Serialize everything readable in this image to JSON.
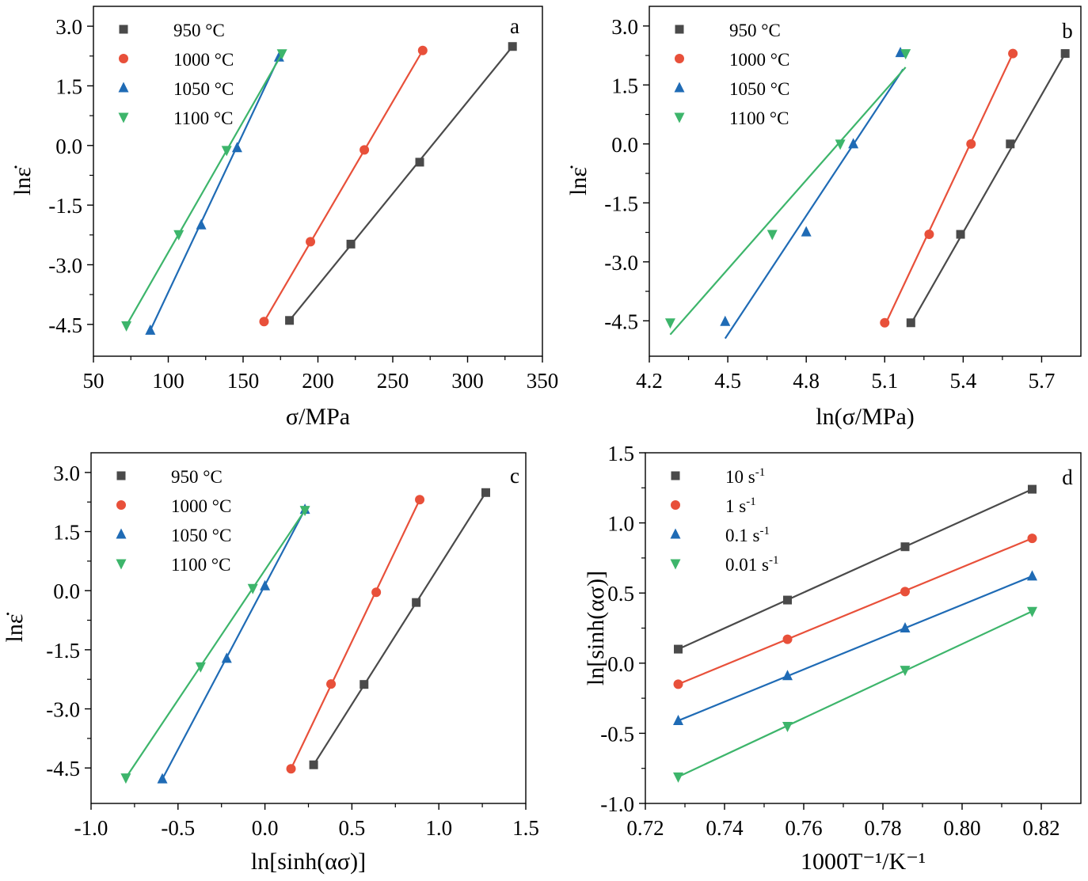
{
  "colors": {
    "s950": "#4a4a4a",
    "s1000": "#e8503a",
    "s1050": "#1f6bb5",
    "s1100": "#3db56b"
  },
  "chart_data": [
    {
      "panel": "a",
      "type": "scatter",
      "xlabel": "σ/MPa",
      "ylabel": "lnε̇",
      "xlim": [
        50,
        350
      ],
      "ylim": [
        -5.3,
        3.5
      ],
      "xticks": [
        "50",
        "100",
        "150",
        "200",
        "250",
        "300",
        "350"
      ],
      "yticks": [
        "3.0",
        "1.5",
        "0.0",
        "-1.5",
        "-3.0",
        "-4.5"
      ],
      "legend_position": "top-left",
      "series": [
        {
          "name": "950 °C",
          "marker": "square",
          "color": "#4a4a4a",
          "points": [
            [
              181,
              -4.4
            ],
            [
              222,
              -2.48
            ],
            [
              268,
              -0.42
            ],
            [
              330,
              2.49
            ]
          ],
          "fit": [
            [
              181,
              -4.4
            ],
            [
              330,
              2.49
            ]
          ]
        },
        {
          "name": "1000 °C",
          "marker": "circle",
          "color": "#e8503a",
          "points": [
            [
              164,
              -4.43
            ],
            [
              195,
              -2.42
            ],
            [
              231,
              -0.11
            ],
            [
              270,
              2.39
            ]
          ],
          "fit": [
            [
              164,
              -4.43
            ],
            [
              270,
              2.39
            ]
          ]
        },
        {
          "name": "1050 °C",
          "marker": "triangle-up",
          "color": "#1f6bb5",
          "points": [
            [
              88,
              -4.65
            ],
            [
              122,
              -2.0
            ],
            [
              146,
              -0.06
            ],
            [
              174,
              2.22
            ]
          ],
          "fit": [
            [
              88,
              -4.65
            ],
            [
              174,
              2.22
            ]
          ]
        },
        {
          "name": "1100 °C",
          "marker": "triangle-down",
          "color": "#3db56b",
          "points": [
            [
              72,
              -4.53
            ],
            [
              107,
              -2.24
            ],
            [
              139,
              -0.12
            ],
            [
              176,
              2.31
            ]
          ],
          "fit": [
            [
              72,
              -4.53
            ],
            [
              176,
              2.31
            ]
          ]
        }
      ]
    },
    {
      "panel": "b",
      "type": "scatter",
      "xlabel": "ln(σ/MPa)",
      "ylabel": "lnε̇",
      "xlim": [
        4.2,
        5.85
      ],
      "ylim": [
        -5.4,
        3.5
      ],
      "xticks": [
        "4.2",
        "4.5",
        "4.8",
        "5.1",
        "5.4",
        "5.7"
      ],
      "yticks": [
        "3.0",
        "1.5",
        "0.0",
        "-1.5",
        "-3.0",
        "-4.5"
      ],
      "legend_position": "top-left",
      "series": [
        {
          "name": "950 °C",
          "marker": "square",
          "color": "#4a4a4a",
          "points": [
            [
              5.2,
              -4.55
            ],
            [
              5.39,
              -2.3
            ],
            [
              5.58,
              0.0
            ],
            [
              5.79,
              2.3
            ]
          ],
          "fit": [
            [
              5.2,
              -4.58
            ],
            [
              5.79,
              2.3
            ]
          ]
        },
        {
          "name": "1000 °C",
          "marker": "circle",
          "color": "#e8503a",
          "points": [
            [
              5.1,
              -4.55
            ],
            [
              5.27,
              -2.3
            ],
            [
              5.43,
              0.0
            ],
            [
              5.59,
              2.3
            ]
          ],
          "fit": [
            [
              5.1,
              -4.62
            ],
            [
              5.59,
              2.3
            ]
          ]
        },
        {
          "name": "1050 °C",
          "marker": "triangle-up",
          "color": "#1f6bb5",
          "points": [
            [
              4.49,
              -4.52
            ],
            [
              4.8,
              -2.24
            ],
            [
              4.98,
              0.0
            ],
            [
              5.16,
              2.32
            ]
          ],
          "fit": [
            [
              4.49,
              -4.95
            ],
            [
              5.17,
              1.9
            ]
          ]
        },
        {
          "name": "1100 °C",
          "marker": "triangle-down",
          "color": "#3db56b",
          "points": [
            [
              4.28,
              -4.55
            ],
            [
              4.67,
              -2.3
            ],
            [
              4.93,
              0.0
            ],
            [
              5.18,
              2.3
            ]
          ],
          "fit": [
            [
              4.28,
              -4.85
            ],
            [
              5.18,
              1.95
            ]
          ]
        }
      ]
    },
    {
      "panel": "c",
      "type": "scatter",
      "xlabel": "ln[sinh(ασ)]",
      "ylabel": "lnε̇",
      "xlim": [
        -1.0,
        1.5
      ],
      "ylim": [
        -5.4,
        3.5
      ],
      "xticks": [
        "-1.0",
        "-0.5",
        "0.0",
        "0.5",
        "1.0",
        "1.5"
      ],
      "yticks": [
        "3.0",
        "1.5",
        "0.0",
        "-1.5",
        "-3.0",
        "-4.5"
      ],
      "legend_position": "top-left",
      "series": [
        {
          "name": "950 °C",
          "marker": "square",
          "color": "#4a4a4a",
          "points": [
            [
              0.28,
              -4.42
            ],
            [
              0.57,
              -2.38
            ],
            [
              0.87,
              -0.3
            ],
            [
              1.27,
              2.49
            ]
          ],
          "fit": [
            [
              0.28,
              -4.42
            ],
            [
              1.27,
              2.49
            ]
          ]
        },
        {
          "name": "1000 °C",
          "marker": "circle",
          "color": "#e8503a",
          "points": [
            [
              0.15,
              -4.52
            ],
            [
              0.38,
              -2.37
            ],
            [
              0.64,
              -0.04
            ],
            [
              0.89,
              2.31
            ]
          ],
          "fit": [
            [
              0.15,
              -4.52
            ],
            [
              0.89,
              2.31
            ]
          ]
        },
        {
          "name": "1050 °C",
          "marker": "triangle-up",
          "color": "#1f6bb5",
          "points": [
            [
              -0.59,
              -4.78
            ],
            [
              -0.22,
              -1.72
            ],
            [
              0.0,
              0.12
            ],
            [
              0.23,
              2.06
            ]
          ],
          "fit": [
            [
              -0.59,
              -4.78
            ],
            [
              0.23,
              2.06
            ]
          ]
        },
        {
          "name": "1100 °C",
          "marker": "triangle-down",
          "color": "#3db56b",
          "points": [
            [
              -0.8,
              -4.75
            ],
            [
              -0.37,
              -1.93
            ],
            [
              -0.07,
              0.06
            ],
            [
              0.23,
              2.04
            ]
          ],
          "fit": [
            [
              -0.8,
              -4.75
            ],
            [
              0.23,
              2.04
            ]
          ]
        }
      ]
    },
    {
      "panel": "d",
      "type": "scatter",
      "xlabel": "1000T⁻¹/K⁻¹",
      "ylabel": "ln[sinh(ασ)]",
      "xlim": [
        0.72,
        0.83
      ],
      "ylim": [
        -1.0,
        1.5
      ],
      "xticks": [
        "0.72",
        "0.74",
        "0.76",
        "0.78",
        "0.80",
        "0.82"
      ],
      "yticks": [
        "1.5",
        "1.0",
        "0.5",
        "0.0",
        "-0.5",
        "-1.0"
      ],
      "legend_position": "top-left",
      "series": [
        {
          "name": "10 s-1",
          "marker": "square",
          "color": "#4a4a4a",
          "points": [
            [
              0.7283,
              0.1
            ],
            [
              0.7559,
              0.45
            ],
            [
              0.7856,
              0.83
            ],
            [
              0.8177,
              1.24
            ]
          ],
          "fit": [
            [
              0.7283,
              0.1
            ],
            [
              0.8177,
              1.24
            ]
          ]
        },
        {
          "name": "1 s-1",
          "marker": "circle",
          "color": "#e8503a",
          "points": [
            [
              0.7283,
              -0.15
            ],
            [
              0.7559,
              0.17
            ],
            [
              0.7856,
              0.51
            ],
            [
              0.8177,
              0.89
            ]
          ],
          "fit": [
            [
              0.7283,
              -0.15
            ],
            [
              0.8177,
              0.89
            ]
          ]
        },
        {
          "name": "0.1 s-1",
          "marker": "triangle-up",
          "color": "#1f6bb5",
          "points": [
            [
              0.7283,
              -0.41
            ],
            [
              0.7559,
              -0.09
            ],
            [
              0.7856,
              0.25
            ],
            [
              0.8177,
              0.62
            ]
          ],
          "fit": [
            [
              0.7283,
              -0.41
            ],
            [
              0.8177,
              0.62
            ]
          ]
        },
        {
          "name": "0.01 s-1",
          "marker": "triangle-down",
          "color": "#3db56b",
          "points": [
            [
              0.7283,
              -0.81
            ],
            [
              0.7559,
              -0.45
            ],
            [
              0.7856,
              -0.05
            ],
            [
              0.8177,
              0.37
            ]
          ],
          "fit": [
            [
              0.7283,
              -0.81
            ],
            [
              0.8177,
              0.37
            ]
          ]
        }
      ]
    }
  ]
}
